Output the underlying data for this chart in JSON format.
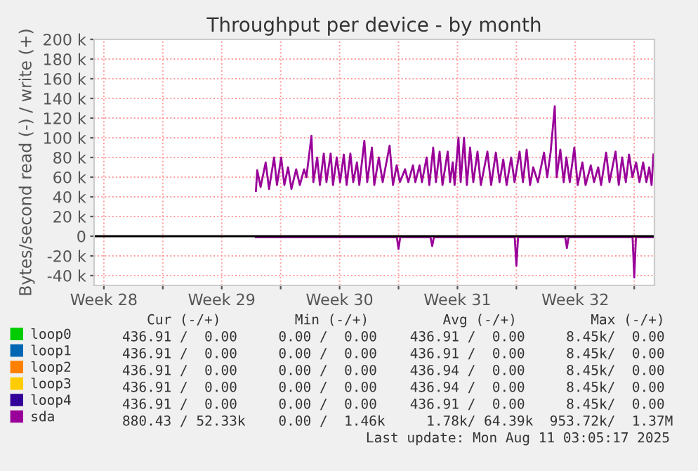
{
  "chart_data": {
    "type": "line",
    "title": "Throughput per device - by month",
    "ylabel": "Bytes/second read (-) / write (+)",
    "xlim": [
      "2025-07-09T22:05",
      "2025-08-12T04:48"
    ],
    "xticks": [
      {
        "value": "2025-07-10T12:00",
        "label": "Week 28"
      },
      {
        "value": "2025-07-14",
        "label": null
      },
      {
        "value": "2025-07-17T12:00",
        "label": "Week 29"
      },
      {
        "value": "2025-07-21",
        "label": null
      },
      {
        "value": "2025-07-24T12:00",
        "label": "Week 30"
      },
      {
        "value": "2025-07-28",
        "label": null
      },
      {
        "value": "2025-07-31T12:00",
        "label": "Week 31"
      },
      {
        "value": "2025-08-04",
        "label": null
      },
      {
        "value": "2025-08-07T12:00",
        "label": "Week 32"
      },
      {
        "value": "2025-08-11",
        "label": null
      }
    ],
    "ylim": [
      -50000,
      200000
    ],
    "yticks": [
      {
        "value": -40000,
        "label": "-40 k"
      },
      {
        "value": -20000,
        "label": "-20 k"
      },
      0,
      {
        "value": 20000,
        "label": "20 k"
      },
      {
        "value": 40000,
        "label": "40 k"
      },
      {
        "value": 60000,
        "label": "60 k"
      },
      {
        "value": 80000,
        "label": "80 k"
      },
      {
        "value": 100000,
        "label": "100 k"
      },
      {
        "value": 120000,
        "label": "120 k"
      },
      {
        "value": 140000,
        "label": "140 k"
      },
      {
        "value": 160000,
        "label": "160 k"
      },
      {
        "value": 180000,
        "label": "180 k"
      },
      {
        "value": 200000,
        "label": "200 k"
      }
    ],
    "grid": true,
    "legend": "bottom",
    "series": [
      {
        "name": "loop0",
        "color": "#00cc00"
      },
      {
        "name": "loop1",
        "color": "#0066b3"
      },
      {
        "name": "loop2",
        "color": "#ff8000"
      },
      {
        "name": "loop3",
        "color": "#ffcc00"
      },
      {
        "name": "loop4",
        "color": "#330099"
      },
      {
        "name": "sda",
        "color": "#990099",
        "x": [
          "2025-07-19T12:43",
          "2025-07-19T14:38",
          "2025-07-19T19:26",
          "2025-07-20T02:38",
          "2025-07-20T07:26",
          "2025-07-20T14:38",
          "2025-07-20T18:43",
          "2025-07-21T00:43",
          "2025-07-21T05:17",
          "2025-07-21T10:34",
          "2025-07-21T15:22",
          "2025-07-21T22:05",
          "2025-07-22T03:22",
          "2025-07-22T09:22",
          "2025-07-22T12:43",
          "2025-07-22T19:55",
          "2025-07-22T22:34",
          "2025-07-23T04:05",
          "2025-07-23T07:55",
          "2025-07-23T13:26",
          "2025-07-23T17:17",
          "2025-07-23T23:17",
          "2025-07-24T02:38",
          "2025-07-24T07:55",
          "2025-07-24T12:43",
          "2025-07-24T18:00",
          "2025-07-24T22:05",
          "2025-07-25T03:22",
          "2025-07-25T07:26",
          "2025-07-25T12:43",
          "2025-07-25T16:05",
          "2025-07-25T23:17",
          "2025-07-26T03:22",
          "2025-07-26T10:05",
          "2025-07-26T13:26",
          "2025-07-26T19:55",
          "2025-07-27T01:26",
          "2025-07-27T11:17",
          "2025-07-27T16:05",
          "2025-07-27T21:22",
          "2025-07-28T01:55",
          "2025-07-28T09:22",
          "2025-07-28T13:55",
          "2025-07-28T20:38",
          "2025-07-29T00:00",
          "2025-07-29T06:00",
          "2025-07-29T09:22",
          "2025-07-29T16:05",
          "2025-07-29T19:55",
          "2025-07-30T01:26",
          "2025-07-30T05:17",
          "2025-07-30T10:34",
          "2025-07-30T14:38",
          "2025-07-30T22:05",
          "2025-07-31T01:26",
          "2025-07-31T05:17",
          "2025-07-31T07:55",
          "2025-07-31T13:26",
          "2025-07-31T16:34",
          "2025-07-31T21:22",
          "2025-08-01T01:26",
          "2025-08-01T06:00",
          "2025-08-01T10:34",
          "2025-08-01T16:34",
          "2025-08-01T21:22",
          "2025-08-02T06:43",
          "2025-08-02T12:00",
          "2025-08-02T18:43",
          "2025-08-03T00:00",
          "2025-08-03T05:17",
          "2025-08-03T10:05",
          "2025-08-03T16:34",
          "2025-08-03T21:22",
          "2025-08-04T04:34",
          "2025-08-04T09:22",
          "2025-08-04T14:38",
          "2025-08-04T19:26",
          "2025-08-05T00:00",
          "2025-08-05T06:43",
          "2025-08-05T15:22",
          "2025-08-05T19:55",
          "2025-08-06T00:43",
          "2025-08-06T06:43",
          "2025-08-06T09:22",
          "2025-08-06T14:38",
          "2025-08-06T19:26",
          "2025-08-06T23:17",
          "2025-08-07T04:05",
          "2025-08-07T10:34",
          "2025-08-07T15:22",
          "2025-08-07T22:05",
          "2025-08-08T02:38",
          "2025-08-08T10:05",
          "2025-08-08T14:38",
          "2025-08-08T20:38",
          "2025-08-09T00:43",
          "2025-08-09T07:55",
          "2025-08-09T12:43",
          "2025-08-09T21:22",
          "2025-08-10T01:55",
          "2025-08-10T06:43",
          "2025-08-10T12:00",
          "2025-08-10T16:34",
          "2025-08-10T21:22",
          "2025-08-11T02:38",
          "2025-08-11T07:26",
          "2025-08-11T12:43",
          "2025-08-11T17:17",
          "2025-08-11T21:22",
          "2025-08-12T00:43",
          "2025-08-12T03:22"
        ],
        "values": [
          46000,
          67000,
          50000,
          75000,
          48000,
          80000,
          52000,
          80000,
          52000,
          70000,
          48000,
          68000,
          52000,
          68000,
          60000,
          102000,
          55000,
          80000,
          52000,
          84000,
          55000,
          84000,
          52000,
          80000,
          55000,
          83000,
          52000,
          84000,
          55000,
          75000,
          52000,
          97000,
          55000,
          90000,
          52000,
          80000,
          55000,
          92000,
          52000,
          72000,
          55000,
          68000,
          55000,
          72000,
          55000,
          72000,
          55000,
          80000,
          52000,
          90000,
          55000,
          86000,
          52000,
          86000,
          55000,
          75000,
          52000,
          100000,
          55000,
          100000,
          52000,
          90000,
          55000,
          86000,
          52000,
          86000,
          52000,
          85000,
          55000,
          78000,
          52000,
          80000,
          55000,
          86000,
          55000,
          88000,
          52000,
          70000,
          55000,
          85000,
          60000,
          85000,
          132000,
          60000,
          88000,
          55000,
          80000,
          55000,
          90000,
          52000,
          75000,
          52000,
          72000,
          55000,
          70000,
          52000,
          85000,
          55000,
          86000,
          52000,
          80000,
          55000,
          83000,
          60000,
          75000,
          55000,
          75000,
          55000,
          70000,
          52000,
          83000
        ]
      },
      {
        "color": "#990099",
        "x": [
          "2025-07-19T12:43",
          "2025-07-27T21:36",
          "2025-07-28T00:00",
          "2025-07-28T02:24",
          "2025-07-29T21:36",
          "2025-07-30T00:00",
          "2025-07-30T02:24",
          "2025-08-03T21:36",
          "2025-08-04T00:00",
          "2025-08-04T02:24",
          "2025-08-06T21:36",
          "2025-08-07T00:00",
          "2025-08-07T02:24",
          "2025-08-10T21:36",
          "2025-08-11T00:00",
          "2025-08-11T02:24",
          "2025-08-12T03:22"
        ],
        "values": [
          -1000,
          -1000,
          -13000,
          -1000,
          -1000,
          -10000,
          -1000,
          -1000,
          -30000,
          -1000,
          -1000,
          -12000,
          -1000,
          -1000,
          -42000,
          -1000,
          -1000
        ]
      }
    ],
    "annotations": [
      "   Cur (-/+)         Min (-/+)         Avg (-/+)         Max (-/+)",
      "436.91 /  0.00     0.00 /  0.00    436.91 /  0.00     8.45k/  0.00",
      "436.91 /  0.00     0.00 /  0.00    436.91 /  0.00     8.45k/  0.00",
      "436.91 /  0.00     0.00 /  0.00    436.94 /  0.00     8.45k/  0.00",
      "436.91 /  0.00     0.00 /  0.00    436.94 /  0.00     8.45k/  0.00",
      "436.91 /  0.00     0.00 /  0.00    436.91 /  0.00     8.45k/  0.00",
      "880.43 / 52.33k    0.00 /  1.46k     1.78k/ 64.39k  953.72k/  1.37M",
      "Last update: Mon Aug 11 03:05:17 2025"
    ]
  }
}
